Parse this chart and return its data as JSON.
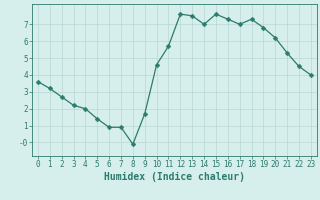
{
  "x": [
    0,
    1,
    2,
    3,
    4,
    5,
    6,
    7,
    8,
    9,
    10,
    11,
    12,
    13,
    14,
    15,
    16,
    17,
    18,
    19,
    20,
    21,
    22,
    23
  ],
  "y": [
    3.6,
    3.2,
    2.7,
    2.2,
    2.0,
    1.4,
    0.9,
    0.9,
    -0.1,
    1.7,
    4.6,
    5.7,
    7.6,
    7.5,
    7.0,
    7.6,
    7.3,
    7.0,
    7.3,
    6.8,
    6.2,
    5.3,
    4.5,
    4.0
  ],
  "line_color": "#2d7b6e",
  "marker_color": "#2d7b6e",
  "bg_color": "#d6eeec",
  "grid_color": "#b8d8d4",
  "axis_color": "#2d7b6e",
  "xlabel": "Humidex (Indice chaleur)",
  "xlim": [
    -0.5,
    23.5
  ],
  "ylim": [
    -0.8,
    8.2
  ],
  "yticks": [
    0,
    1,
    2,
    3,
    4,
    5,
    6,
    7
  ],
  "ytick_labels": [
    "-0",
    "1",
    "2",
    "3",
    "4",
    "5",
    "6",
    "7"
  ],
  "xticks": [
    0,
    1,
    2,
    3,
    4,
    5,
    6,
    7,
    8,
    9,
    10,
    11,
    12,
    13,
    14,
    15,
    16,
    17,
    18,
    19,
    20,
    21,
    22,
    23
  ],
  "tick_label_size": 5.5,
  "xlabel_size": 7,
  "marker_size": 2.5,
  "linewidth": 0.9
}
